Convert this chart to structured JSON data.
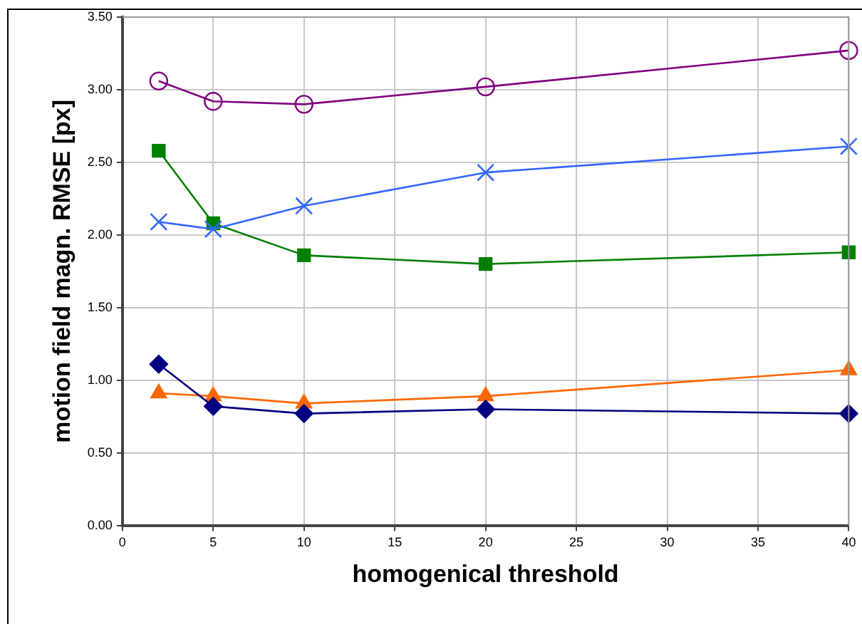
{
  "chart_data": {
    "type": "line",
    "xlabel": "homogenical threshold",
    "ylabel": "motion field magn. RMSE [px]",
    "x": [
      2,
      5,
      10,
      20,
      40
    ],
    "series": [
      {
        "color": "#800080",
        "marker": "circle",
        "values": [
          3.06,
          2.92,
          2.9,
          3.02,
          3.27
        ]
      },
      {
        "color": "#3366ff",
        "marker": "cross",
        "values": [
          2.09,
          2.04,
          2.2,
          2.43,
          2.61
        ]
      },
      {
        "color": "#008000",
        "marker": "square",
        "values": [
          2.58,
          2.08,
          1.86,
          1.8,
          1.88
        ]
      },
      {
        "color": "#000080",
        "marker": "diamond",
        "values": [
          1.11,
          0.82,
          0.77,
          0.8,
          0.77
        ]
      },
      {
        "color": "#ff6600",
        "marker": "triangle",
        "values": [
          0.91,
          0.89,
          0.84,
          0.89,
          1.07
        ]
      }
    ],
    "xlim": [
      0,
      40
    ],
    "xticks": [
      0,
      5,
      10,
      15,
      20,
      25,
      30,
      35,
      40
    ],
    "ylim": [
      0,
      3.5
    ],
    "yticks": [
      {
        "value": 0,
        "label": "0.00"
      },
      {
        "value": 0.5,
        "label": "0.50"
      },
      {
        "value": 1,
        "label": "1.00"
      },
      {
        "value": 1.5,
        "label": "1.50"
      },
      {
        "value": 2,
        "label": "2.00"
      },
      {
        "value": 2.5,
        "label": "2.50"
      },
      {
        "value": 3,
        "label": "3.00"
      },
      {
        "value": 3.5,
        "label": "3.50"
      }
    ],
    "grid": true,
    "legend": false
  }
}
